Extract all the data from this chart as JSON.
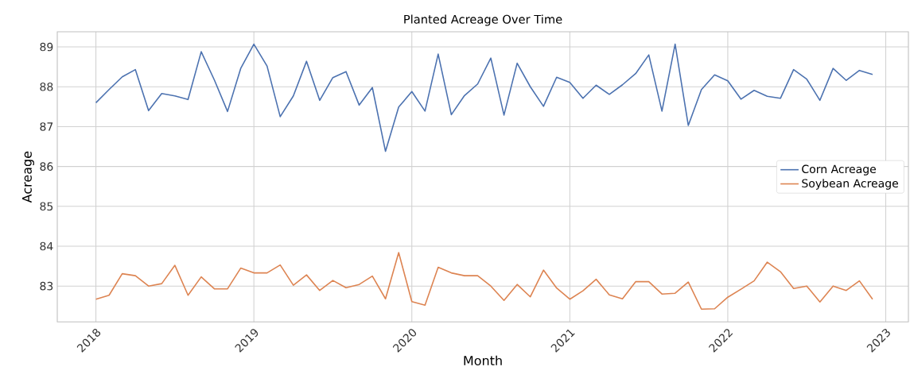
{
  "chart_data": {
    "type": "line",
    "title": "Planted Acreage Over Time",
    "xlabel": "Month",
    "ylabel": "Acreage",
    "x": [
      "2018-01",
      "2018-02",
      "2018-03",
      "2018-04",
      "2018-05",
      "2018-06",
      "2018-07",
      "2018-08",
      "2018-09",
      "2018-10",
      "2018-11",
      "2018-12",
      "2019-01",
      "2019-02",
      "2019-03",
      "2019-04",
      "2019-05",
      "2019-06",
      "2019-07",
      "2019-08",
      "2019-09",
      "2019-10",
      "2019-11",
      "2019-12",
      "2020-01",
      "2020-02",
      "2020-03",
      "2020-04",
      "2020-05",
      "2020-06",
      "2020-07",
      "2020-08",
      "2020-09",
      "2020-10",
      "2020-11",
      "2020-12",
      "2021-01",
      "2021-02",
      "2021-03",
      "2021-04",
      "2021-05",
      "2021-06",
      "2021-07",
      "2021-08",
      "2021-09",
      "2021-10",
      "2021-11",
      "2021-12",
      "2022-01",
      "2022-02",
      "2022-03",
      "2022-04",
      "2022-05",
      "2022-06",
      "2022-07",
      "2022-08",
      "2022-09",
      "2022-10",
      "2022-11",
      "2022-12"
    ],
    "series": [
      {
        "name": "Corn Acreage",
        "color": "#4c72b0",
        "values": [
          87.6,
          87.93,
          88.25,
          88.43,
          87.4,
          87.83,
          87.77,
          87.68,
          88.88,
          88.17,
          87.38,
          88.46,
          89.07,
          88.52,
          87.25,
          87.77,
          88.64,
          87.66,
          88.23,
          88.38,
          87.54,
          87.98,
          86.38,
          87.49,
          87.88,
          87.39,
          88.82,
          87.3,
          87.78,
          88.07,
          88.72,
          87.29,
          88.59,
          88.0,
          87.51,
          88.24,
          88.11,
          87.71,
          88.04,
          87.81,
          88.05,
          88.33,
          88.8,
          87.39,
          89.07,
          87.03,
          87.93,
          88.3,
          88.15,
          87.69,
          87.91,
          87.76,
          87.71,
          88.43,
          88.19,
          87.66,
          88.46,
          88.16,
          88.41,
          88.31
        ]
      },
      {
        "name": "Soybean Acreage",
        "color": "#dd8452",
        "values": [
          82.67,
          82.77,
          83.31,
          83.26,
          83.0,
          83.06,
          83.52,
          82.77,
          83.23,
          82.93,
          82.93,
          83.45,
          83.33,
          83.33,
          83.53,
          83.02,
          83.28,
          82.89,
          83.14,
          82.96,
          83.04,
          83.25,
          82.68,
          83.84,
          82.61,
          82.52,
          83.47,
          83.33,
          83.26,
          83.26,
          83.0,
          82.64,
          83.04,
          82.73,
          83.4,
          82.95,
          82.67,
          82.88,
          83.17,
          82.78,
          82.68,
          83.11,
          83.11,
          82.8,
          82.82,
          83.1,
          82.42,
          82.43,
          82.72,
          82.92,
          83.13,
          83.6,
          83.36,
          82.94,
          83.0,
          82.6,
          83.0,
          82.89,
          83.13,
          82.67
        ]
      }
    ],
    "xlim": [
      "2017-10-03",
      "2023-02-23"
    ],
    "xticks": [
      "2018",
      "2019",
      "2020",
      "2021",
      "2022",
      "2023"
    ],
    "ylim": [
      82.1,
      89.38
    ],
    "yticks": [
      83,
      84,
      85,
      86,
      87,
      88,
      89
    ],
    "grid": true,
    "legend": "right"
  }
}
